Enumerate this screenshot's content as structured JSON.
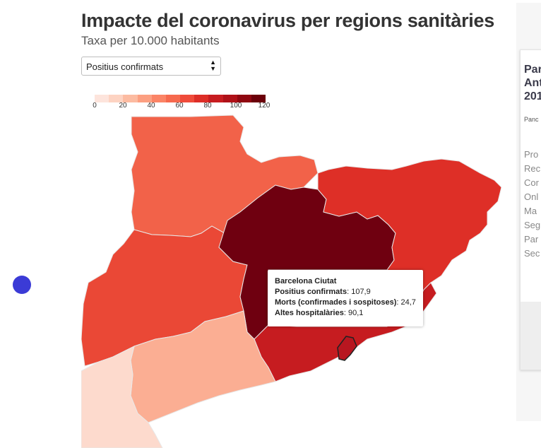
{
  "header": {
    "title": "Impacte del coronavirus per regions sanitàries",
    "subtitle": "Taxa per 10.000 habitants"
  },
  "metric_select": {
    "selected": "Positius confirmats",
    "arrows_icon": "sort-arrows-icon"
  },
  "legend": {
    "ticks": [
      "0",
      "20",
      "40",
      "60",
      "80",
      "100",
      "120"
    ],
    "range": [
      0,
      120
    ],
    "colors": [
      "#fde4dc",
      "#fdd3c2",
      "#fcbba1",
      "#fc9f81",
      "#fb8466",
      "#f6694e",
      "#ef4b3a",
      "#dd2e27",
      "#c71c20",
      "#af1118",
      "#8f0710",
      "#6b0009"
    ]
  },
  "map": {
    "regions": [
      {
        "key": "alt-pirineu-aran",
        "color": "#f26249"
      },
      {
        "key": "lleida",
        "color": "#ea4836"
      },
      {
        "key": "catalunya-central",
        "color": "#6f0010"
      },
      {
        "key": "girona",
        "color": "#de2f27"
      },
      {
        "key": "barcelona",
        "color": "#c61c20"
      },
      {
        "key": "camp-de-tarragona",
        "color": "#fbae93"
      },
      {
        "key": "terres-de-lebre",
        "color": "#fddacd"
      },
      {
        "key": "barcelona-ciutat",
        "color": "#b81620"
      }
    ]
  },
  "tooltip": {
    "region_name": "Barcelona Ciutat",
    "rows": [
      {
        "label": "Positius confirmats",
        "value": "107,9"
      },
      {
        "label": "Morts (confirmades i sospitoses)",
        "value": "24,7"
      },
      {
        "label": "Altes hospitalàries",
        "value": "90,1"
      }
    ]
  },
  "side_card": {
    "title_lines": [
      "Par",
      "Ant",
      "201"
    ],
    "small_text": "Panc",
    "list_items": [
      "Pro",
      "Rec",
      "Cor",
      "Onl",
      "Ma",
      "Seg",
      "Par",
      "Sec"
    ]
  }
}
